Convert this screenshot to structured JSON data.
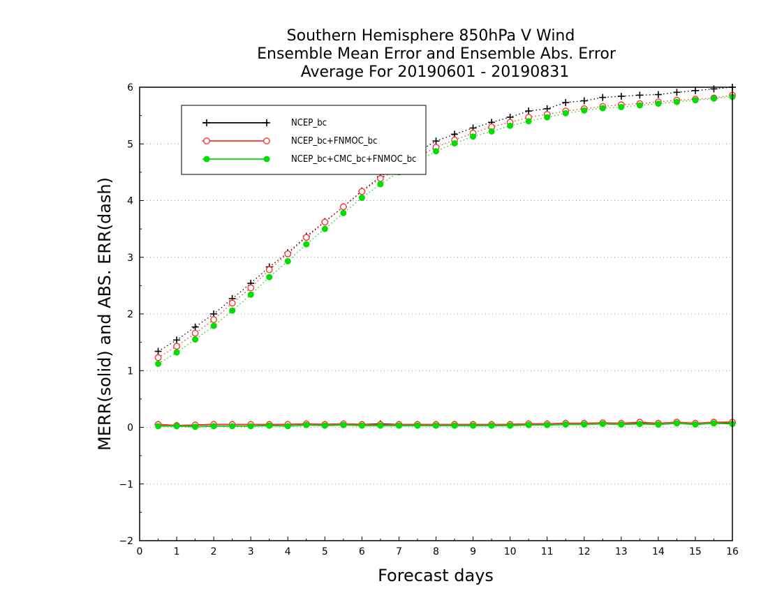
{
  "chart_data": {
    "type": "line",
    "title_lines": [
      "Southern Hemisphere 850hPa V Wind",
      "Ensemble Mean Error and Ensemble Abs. Error",
      "Average For 20190601 - 20190831"
    ],
    "xlabel": "Forecast days",
    "ylabel": "MERR(solid) and ABS. ERR(dash)",
    "xlim": [
      0,
      16
    ],
    "ylim": [
      -2,
      6
    ],
    "xticks": [
      "0",
      "1",
      "2",
      "3",
      "4",
      "5",
      "6",
      "7",
      "8",
      "9",
      "10",
      "11",
      "12",
      "13",
      "14",
      "15",
      "16"
    ],
    "yticks": [
      "−2",
      "−1",
      "0",
      "1",
      "2",
      "3",
      "4",
      "5",
      "6"
    ],
    "grid": "horizontal dotted",
    "legend_position": "top-left",
    "x": [
      0.5,
      1,
      1.5,
      2,
      2.5,
      3,
      3.5,
      4,
      4.5,
      5,
      5.5,
      6,
      6.5,
      7,
      7.5,
      8,
      8.5,
      9,
      9.5,
      10,
      10.5,
      11,
      11.5,
      12,
      12.5,
      13,
      13.5,
      14,
      14.5,
      15,
      15.5,
      16
    ],
    "series": [
      {
        "name": "NCEP_bc",
        "color": "#000000",
        "marker": "plus",
        "abs_err": [
          1.34,
          1.54,
          1.77,
          2.0,
          2.27,
          2.54,
          2.83,
          3.08,
          3.37,
          3.63,
          3.89,
          4.17,
          4.42,
          4.64,
          4.86,
          5.05,
          5.17,
          5.28,
          5.38,
          5.47,
          5.58,
          5.62,
          5.73,
          5.76,
          5.82,
          5.84,
          5.86,
          5.87,
          5.91,
          5.94,
          5.97,
          6.0
        ],
        "mean_err": [
          0.05,
          0.03,
          0.04,
          0.05,
          0.05,
          0.05,
          0.05,
          0.05,
          0.06,
          0.05,
          0.06,
          0.05,
          0.06,
          0.05,
          0.05,
          0.05,
          0.05,
          0.05,
          0.05,
          0.05,
          0.06,
          0.06,
          0.07,
          0.07,
          0.07,
          0.07,
          0.08,
          0.07,
          0.08,
          0.07,
          0.08,
          0.08
        ]
      },
      {
        "name": "NCEP_bc+FNMOC_bc",
        "color": "#ff3333",
        "marker": "open-circle",
        "abs_err": [
          1.23,
          1.43,
          1.66,
          1.9,
          2.19,
          2.46,
          2.78,
          3.06,
          3.35,
          3.62,
          3.89,
          4.16,
          4.39,
          4.56,
          4.77,
          4.94,
          5.07,
          5.19,
          5.3,
          5.38,
          5.47,
          5.52,
          5.58,
          5.62,
          5.66,
          5.69,
          5.71,
          5.74,
          5.77,
          5.79,
          5.81,
          5.86
        ],
        "mean_err": [
          0.05,
          0.03,
          0.04,
          0.05,
          0.05,
          0.05,
          0.05,
          0.05,
          0.06,
          0.05,
          0.06,
          0.05,
          0.05,
          0.05,
          0.05,
          0.05,
          0.05,
          0.05,
          0.05,
          0.05,
          0.06,
          0.06,
          0.07,
          0.07,
          0.08,
          0.07,
          0.09,
          0.07,
          0.09,
          0.07,
          0.09,
          0.09
        ]
      },
      {
        "name": "NCEP_bc+CMC_bc+FNMOC_bc",
        "color": "#00dd00",
        "marker": "filled-circle",
        "abs_err": [
          1.12,
          1.32,
          1.55,
          1.79,
          2.06,
          2.34,
          2.65,
          2.93,
          3.23,
          3.5,
          3.78,
          4.05,
          4.29,
          4.5,
          4.69,
          4.87,
          5.01,
          5.13,
          5.22,
          5.32,
          5.4,
          5.47,
          5.54,
          5.59,
          5.63,
          5.65,
          5.68,
          5.71,
          5.74,
          5.77,
          5.8,
          5.83
        ],
        "mean_err": [
          0.02,
          0.02,
          0.01,
          0.02,
          0.02,
          0.02,
          0.03,
          0.02,
          0.04,
          0.03,
          0.04,
          0.03,
          0.03,
          0.03,
          0.03,
          0.03,
          0.03,
          0.03,
          0.03,
          0.03,
          0.04,
          0.04,
          0.05,
          0.05,
          0.06,
          0.05,
          0.06,
          0.05,
          0.07,
          0.05,
          0.07,
          0.06
        ]
      }
    ]
  }
}
